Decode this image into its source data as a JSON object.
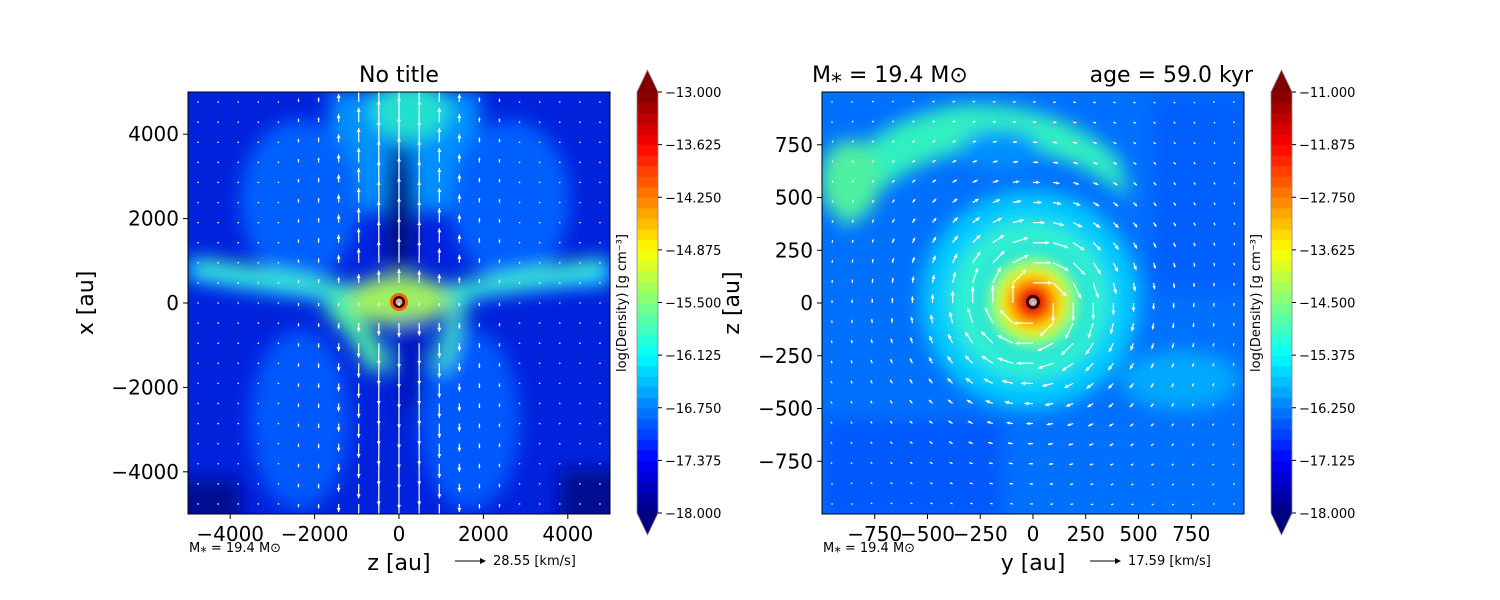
{
  "chart_data": [
    {
      "type": "heatmap",
      "subtype": "filled-contour with velocity quiver",
      "title": "No title",
      "xlabel": "z [au]",
      "ylabel": "x [au]",
      "xlim": [
        -5000,
        5000
      ],
      "ylim": [
        -5000,
        5000
      ],
      "xticks": [
        -4000,
        -2000,
        0,
        2000,
        4000
      ],
      "xtick_labels": [
        "−4000",
        "−2000",
        "0",
        "2000",
        "4000"
      ],
      "yticks": [
        4000,
        2000,
        0,
        -2000,
        -4000
      ],
      "ytick_labels": [
        "4000",
        "2000",
        "0",
        "−2000",
        "−4000"
      ],
      "colorbar": {
        "label": "log(Density) [g cm⁻³]",
        "range": [
          -18.0,
          -13.0
        ],
        "ticks": [
          -13.0,
          -13.625,
          -14.25,
          -14.875,
          -15.5,
          -16.125,
          -16.75,
          -17.375,
          -18.0
        ],
        "tick_labels": [
          "−13.000",
          "−13.625",
          "−14.250",
          "−14.875",
          "−15.500",
          "−16.125",
          "−16.750",
          "−17.375",
          "−18.000"
        ],
        "extend": "both",
        "colormap": "jet",
        "levels": 40
      },
      "annotation_mass": "M⁎ = 19.4 M⊙",
      "quiver_key": {
        "label": "28.55 [km/s]",
        "value_kms": 28.55
      },
      "features": {
        "structure": "bipolar outflow cavity along z=0 axis with disk/filaments along x≈0, sink at origin",
        "sink_position": [
          0,
          0
        ]
      }
    },
    {
      "type": "heatmap",
      "subtype": "filled-contour with velocity quiver",
      "title_left": "M⁎ = 19.4 M⊙",
      "title_right": "age = 59.0 kyr",
      "xlabel": "y [au]",
      "ylabel": "z [au]",
      "xlim": [
        -1000,
        1000
      ],
      "ylim": [
        -1000,
        1000
      ],
      "xticks": [
        -750,
        -500,
        -250,
        0,
        250,
        500,
        750
      ],
      "xtick_labels": [
        "−750",
        "−500",
        "−250",
        "0",
        "250",
        "500",
        "750"
      ],
      "yticks": [
        750,
        500,
        250,
        0,
        -250,
        -500,
        -750
      ],
      "ytick_labels": [
        "750",
        "500",
        "250",
        "0",
        "−250",
        "−500",
        "−750"
      ],
      "colorbar": {
        "label": "log(Density) [g cm⁻³]",
        "range": [
          -18.0,
          -11.0
        ],
        "ticks": [
          -11.0,
          -11.875,
          -12.75,
          -13.625,
          -14.5,
          -15.375,
          -16.25,
          -17.125,
          -18.0
        ],
        "tick_labels": [
          "−11.000",
          "−11.875",
          "−12.750",
          "−13.625",
          "−14.500",
          "−15.375",
          "−16.250",
          "−17.125",
          "−18.000"
        ],
        "extend": "both",
        "colormap": "jet",
        "levels": 40
      },
      "annotation_mass": "M⁎ = 19.4 M⊙",
      "quiver_key": {
        "label": "17.59 [km/s]",
        "value_kms": 17.59
      },
      "features": {
        "structure": "rotating dense core centered at origin with spiral arm in upper-left",
        "sink_position": [
          0,
          0
        ]
      }
    }
  ]
}
